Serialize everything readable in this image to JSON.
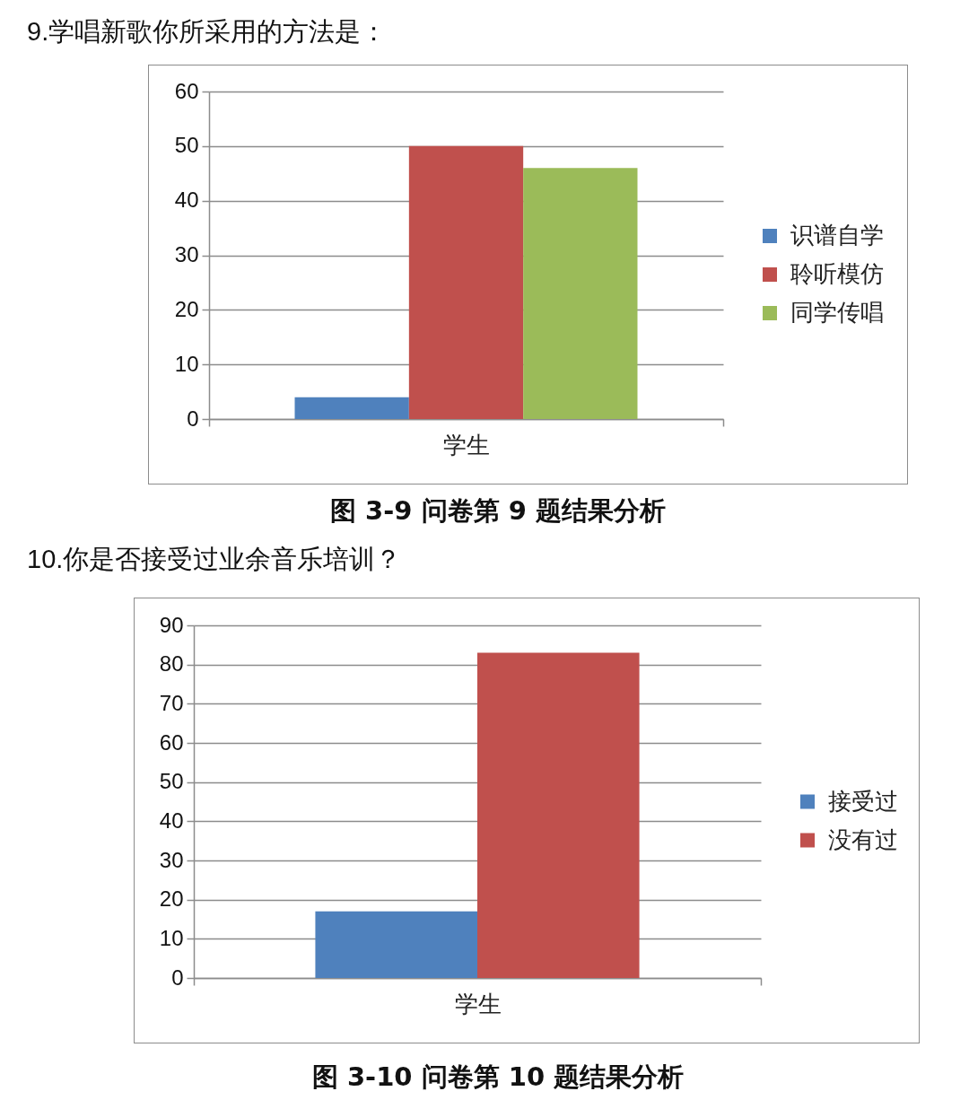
{
  "chart_data": [
    {
      "type": "bar",
      "title": "9.学唱新歌你所采用的方法是：",
      "categories": [
        "学生"
      ],
      "series": [
        {
          "name": "识谱自学",
          "color": "#4f81bd",
          "values": [
            4
          ]
        },
        {
          "name": "聆听模仿",
          "color": "#c0504d",
          "values": [
            50
          ]
        },
        {
          "name": "同学传唱",
          "color": "#9bbb59",
          "values": [
            46
          ]
        }
      ],
      "ylim": [
        0,
        60
      ],
      "yticks": [
        0,
        10,
        20,
        30,
        40,
        50,
        60
      ],
      "grid": "y",
      "legend": "right",
      "annotations": [
        "图 3-9 问卷第 9 题结果分析"
      ]
    },
    {
      "type": "bar",
      "title": "10.你是否接受过业余音乐培训？",
      "categories": [
        "学生"
      ],
      "series": [
        {
          "name": "接受过",
          "color": "#4f81bd",
          "values": [
            17
          ]
        },
        {
          "name": "没有过",
          "color": "#c0504d",
          "values": [
            83
          ]
        }
      ],
      "ylim": [
        0,
        90
      ],
      "yticks": [
        0,
        10,
        20,
        30,
        40,
        50,
        60,
        70,
        80,
        90
      ],
      "grid": "y",
      "legend": "right",
      "annotations": [
        "图 3-10 问卷第 10 题结果分析"
      ]
    }
  ]
}
